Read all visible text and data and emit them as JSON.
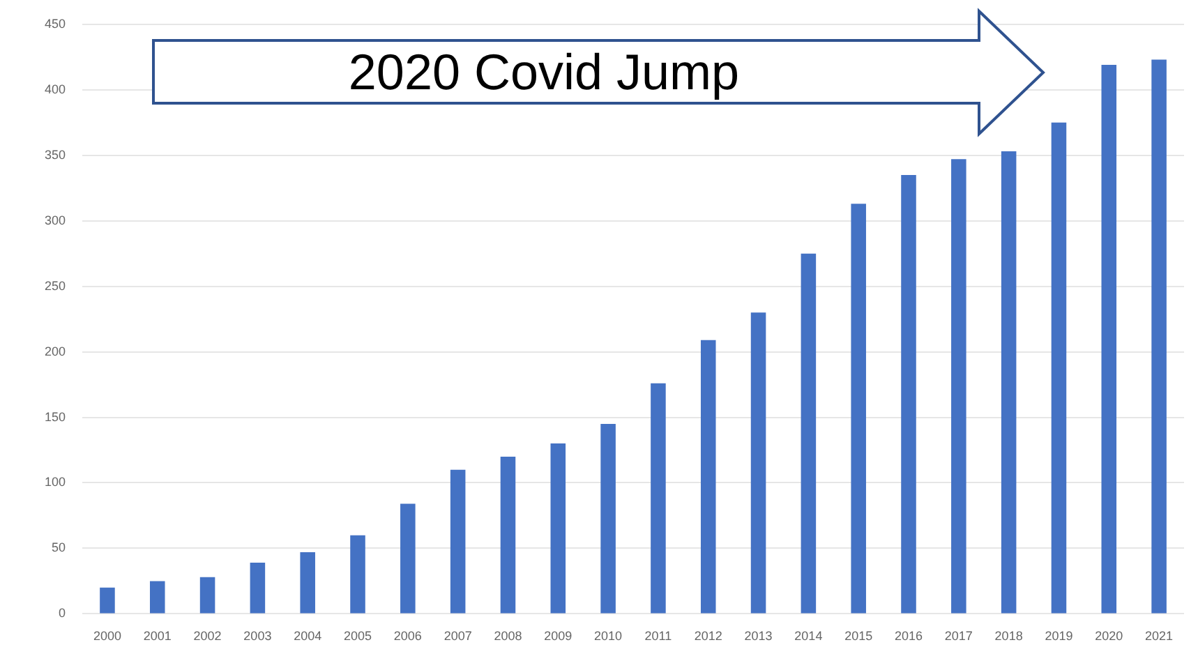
{
  "chart_data": {
    "type": "bar",
    "categories": [
      "2000",
      "2001",
      "2002",
      "2003",
      "2004",
      "2005",
      "2006",
      "2007",
      "2008",
      "2009",
      "2010",
      "2011",
      "2012",
      "2013",
      "2014",
      "2015",
      "2016",
      "2017",
      "2018",
      "2019",
      "2020",
      "2021"
    ],
    "values": [
      20,
      25,
      28,
      39,
      47,
      60,
      84,
      110,
      120,
      130,
      145,
      176,
      209,
      230,
      275,
      313,
      335,
      347,
      353,
      375,
      419,
      423
    ],
    "color": "#4472c4",
    "ylim": [
      0,
      450
    ],
    "yticks": [
      0,
      50,
      100,
      150,
      200,
      250,
      300,
      350,
      400,
      450
    ],
    "grid": "y",
    "annotations": [
      "2020 Covid Jump"
    ]
  }
}
